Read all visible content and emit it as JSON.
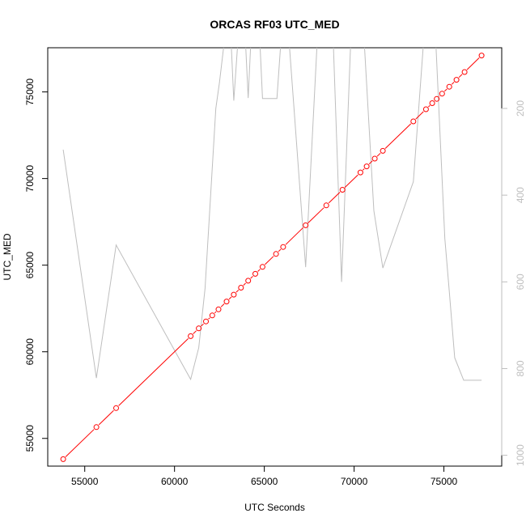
{
  "chart_data": {
    "type": "line",
    "title": "ORCAS RF03 UTC_MED",
    "xlabel": "UTC Seconds",
    "ylabel": "UTC_MED",
    "xlim": [
      52940,
      78220
    ],
    "ylim": [
      53400,
      77550
    ],
    "x_ticks": [
      55000,
      60000,
      65000,
      70000,
      75000
    ],
    "x_tick_labels": [
      "55000",
      "60000",
      "65000",
      "70000",
      "75000"
    ],
    "y_ticks": [
      55000,
      60000,
      65000,
      70000,
      75000
    ],
    "y_tick_labels": [
      "55000",
      "60000",
      "65000",
      "70000",
      "75000"
    ],
    "y2_ticks": [
      200,
      400,
      600,
      800,
      1000
    ],
    "y2_tick_labels": [
      "200",
      "400",
      "600",
      "800",
      "1000"
    ],
    "y2lim": [
      1025,
      60
    ],
    "grid": false,
    "colors": {
      "main": "#ff0000",
      "secondary": "#bebebe",
      "axis": "#000000",
      "axis2": "#bebebe"
    },
    "series": [
      {
        "style": "line-with-open-circles",
        "color": "#ff0000",
        "points": [
          [
            53800,
            53800
          ],
          [
            55650,
            55650
          ],
          [
            56750,
            56750
          ],
          [
            60900,
            60900
          ],
          [
            61350,
            61350
          ],
          [
            61750,
            61750
          ],
          [
            62100,
            62100
          ],
          [
            62450,
            62450
          ],
          [
            62900,
            62900
          ],
          [
            63300,
            63300
          ],
          [
            63700,
            63700
          ],
          [
            64100,
            64100
          ],
          [
            64500,
            64500
          ],
          [
            64900,
            64900
          ],
          [
            65650,
            65650
          ],
          [
            66050,
            66050
          ],
          [
            67300,
            67300
          ],
          [
            68450,
            68450
          ],
          [
            69350,
            69350
          ],
          [
            70350,
            70350
          ],
          [
            70700,
            70700
          ],
          [
            71150,
            71150
          ],
          [
            71600,
            71600
          ],
          [
            73300,
            73300
          ],
          [
            74000,
            74000
          ],
          [
            74350,
            74350
          ],
          [
            74600,
            74600
          ],
          [
            74900,
            74900
          ],
          [
            75300,
            75300
          ],
          [
            75700,
            75700
          ],
          [
            76150,
            76150
          ],
          [
            77100,
            77100
          ]
        ]
      },
      {
        "style": "line",
        "color": "#bebebe",
        "axis": "right",
        "points": [
          [
            53800,
            295
          ],
          [
            55650,
            822
          ],
          [
            56750,
            515
          ],
          [
            60900,
            825
          ],
          [
            61350,
            752
          ],
          [
            61700,
            615
          ],
          [
            62300,
            200
          ],
          [
            62500,
            140
          ],
          [
            62900,
            1
          ],
          [
            63100,
            1
          ],
          [
            63300,
            182
          ],
          [
            63600,
            1
          ],
          [
            63900,
            1
          ],
          [
            64100,
            176
          ],
          [
            64300,
            1
          ],
          [
            64700,
            1
          ],
          [
            64900,
            177
          ],
          [
            65700,
            177
          ],
          [
            66000,
            1
          ],
          [
            66300,
            1
          ],
          [
            67300,
            566
          ],
          [
            68000,
            1
          ],
          [
            68800,
            1
          ],
          [
            69300,
            600
          ],
          [
            69850,
            1
          ],
          [
            70200,
            1
          ],
          [
            70500,
            1
          ],
          [
            71100,
            436
          ],
          [
            71600,
            568
          ],
          [
            73300,
            369
          ],
          [
            73950,
            1
          ],
          [
            74500,
            1
          ],
          [
            75050,
            500
          ],
          [
            75300,
            622
          ],
          [
            75600,
            775
          ],
          [
            76100,
            827
          ],
          [
            77100,
            827
          ]
        ]
      }
    ]
  }
}
